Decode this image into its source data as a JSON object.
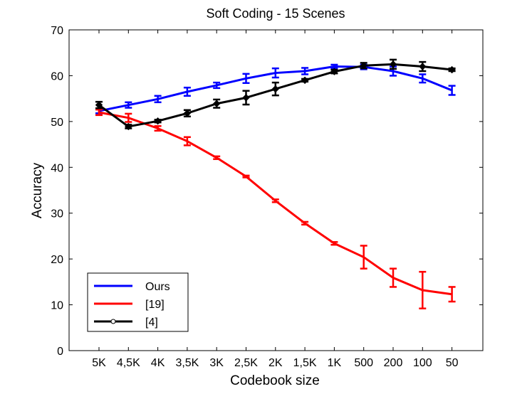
{
  "chart_data": {
    "type": "line",
    "title": "Soft Coding - 15 Scenes",
    "xlabel": "Codebook size",
    "ylabel": "Accuracy",
    "categories": [
      "5K",
      "4,5K",
      "4K",
      "3,5K",
      "3K",
      "2,5K",
      "2K",
      "1,5K",
      "1K",
      "500",
      "200",
      "100",
      "50"
    ],
    "ylim": [
      0,
      70
    ],
    "yticks": [
      0,
      10,
      20,
      30,
      40,
      50,
      60,
      70
    ],
    "legend_position": "bottom-left",
    "series": [
      {
        "name": "Ours",
        "color": "#0000ff",
        "marker": "none",
        "values": [
          52.3,
          53.6,
          54.9,
          56.5,
          57.9,
          59.4,
          60.6,
          61.0,
          62.0,
          61.9,
          61.0,
          59.4,
          56.8
        ],
        "errors": [
          0.5,
          0.6,
          0.7,
          0.9,
          0.6,
          1.0,
          1.0,
          0.7,
          0.4,
          0.5,
          1.0,
          0.9,
          1.0
        ]
      },
      {
        "name": "[19]",
        "color": "#ff0000",
        "marker": "none",
        "values": [
          52.0,
          50.8,
          48.5,
          45.7,
          42.1,
          38.0,
          32.7,
          27.8,
          23.4,
          20.4,
          15.9,
          13.2,
          12.3
        ],
        "errors": [
          0.6,
          0.9,
          0.5,
          0.9,
          0.3,
          0.2,
          0.3,
          0.3,
          0.3,
          2.5,
          2.0,
          4.0,
          1.6
        ]
      },
      {
        "name": "[4]",
        "color": "#000000",
        "marker": "diamond",
        "values": [
          53.6,
          48.9,
          50.1,
          51.8,
          53.9,
          55.2,
          57.1,
          59.0,
          60.9,
          62.2,
          62.5,
          62.0,
          61.3
        ],
        "errors": [
          0.7,
          0.4,
          0.3,
          0.7,
          0.9,
          1.5,
          1.4,
          0.3,
          0.4,
          0.6,
          1.0,
          1.0,
          0.3
        ]
      }
    ]
  }
}
